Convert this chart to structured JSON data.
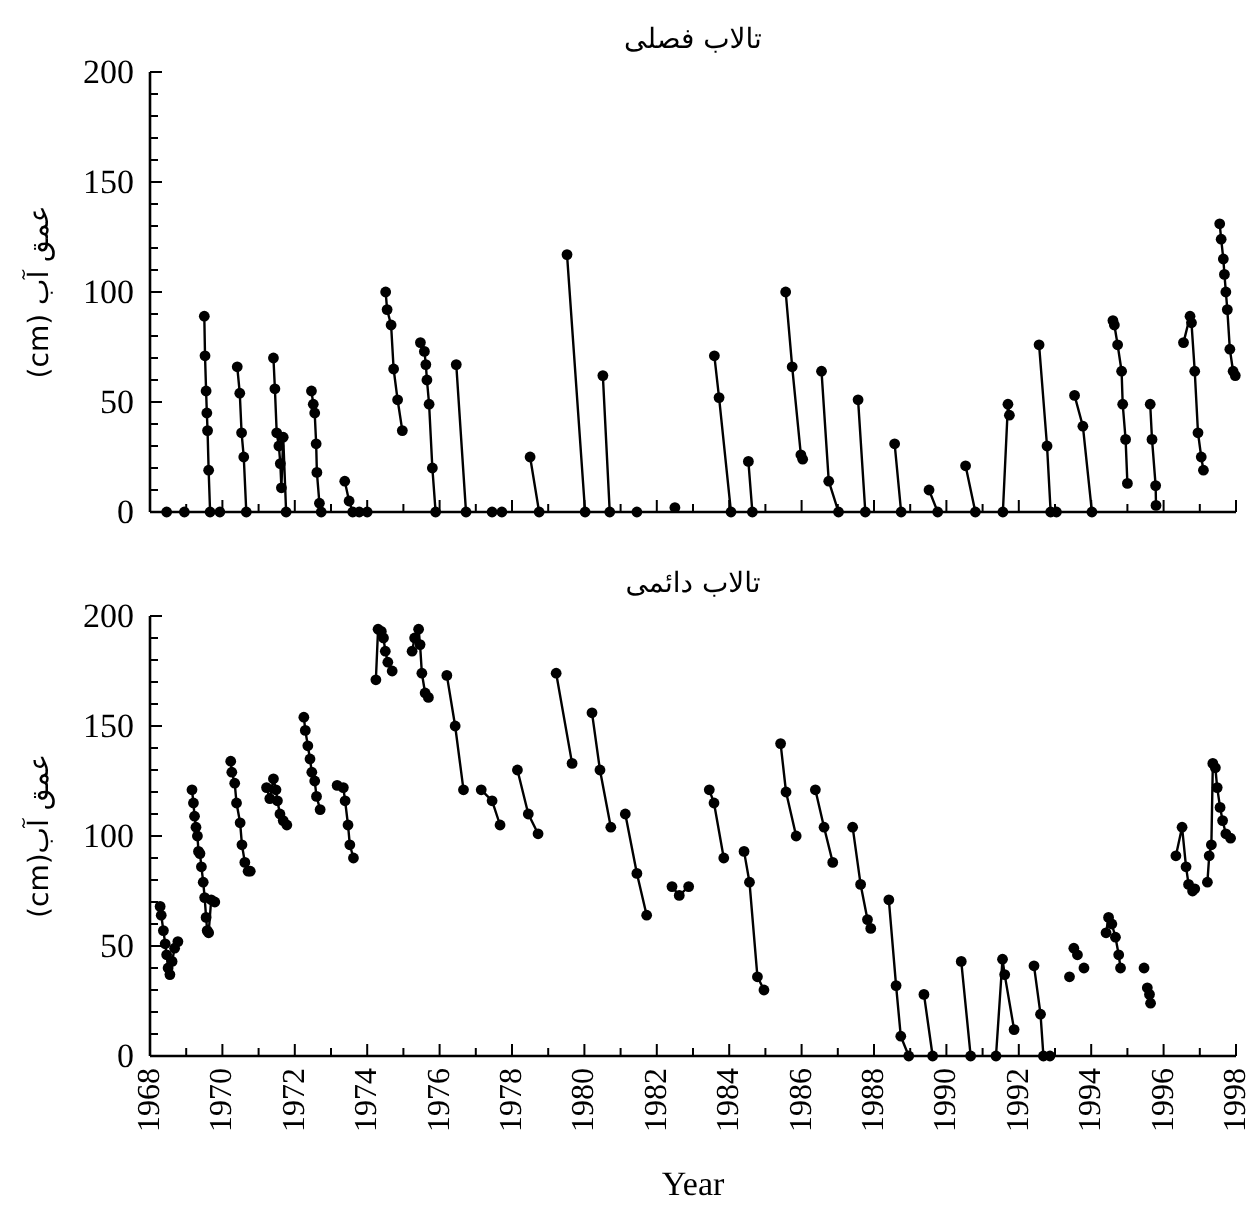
{
  "chart_data": [
    {
      "type": "line",
      "title": "تالاب فصلی",
      "ylabel": "عمق آب (cm)",
      "xlim": [
        1968,
        1998
      ],
      "ylim": [
        0,
        200
      ],
      "tick_labels": "y",
      "marker": "circle",
      "xticks": [
        1968,
        {
          "value": 1969,
          "label": null
        },
        1970,
        {
          "value": 1971,
          "label": null
        },
        1972,
        {
          "value": 1973,
          "label": null
        },
        1974,
        {
          "value": 1975,
          "label": null
        },
        1976,
        {
          "value": 1977,
          "label": null
        },
        1978,
        {
          "value": 1979,
          "label": null
        },
        1980,
        {
          "value": 1981,
          "label": null
        },
        1982,
        {
          "value": 1983,
          "label": null
        },
        1984,
        {
          "value": 1985,
          "label": null
        },
        1986,
        {
          "value": 1987,
          "label": null
        },
        1988,
        {
          "value": 1989,
          "label": null
        },
        1990,
        {
          "value": 1991,
          "label": null
        },
        1992,
        {
          "value": 1993,
          "label": null
        },
        1994,
        {
          "value": 1995,
          "label": null
        },
        1996,
        {
          "value": 1997,
          "label": null
        },
        1998
      ],
      "yticks": [
        0,
        {
          "value": 10,
          "label": null
        },
        {
          "value": 20,
          "label": null
        },
        {
          "value": 30,
          "label": null
        },
        {
          "value": 40,
          "label": null
        },
        50,
        {
          "value": 60,
          "label": null
        },
        {
          "value": 70,
          "label": null
        },
        {
          "value": 80,
          "label": null
        },
        {
          "value": 90,
          "label": null
        },
        100,
        {
          "value": 110,
          "label": null
        },
        {
          "value": 120,
          "label": null
        },
        {
          "value": 130,
          "label": null
        },
        {
          "value": 140,
          "label": null
        },
        150,
        {
          "value": 160,
          "label": null
        },
        {
          "value": 170,
          "label": null
        },
        {
          "value": 180,
          "label": null
        },
        {
          "value": 190,
          "label": null
        },
        200
      ],
      "series": [
        {
          "color": "#000000",
          "x": [
            1969.5,
            1969.52,
            1969.55,
            1969.57,
            1969.59,
            1969.62,
            1969.66,
            1969.93,
            null,
            1970.41,
            1970.48,
            1970.53,
            1970.59,
            1970.66,
            null,
            1971.41,
            1971.45,
            1971.5,
            1971.56,
            1971.6,
            1971.63,
            1971.68,
            1971.76,
            null,
            1972.46,
            1972.51,
            1972.55,
            1972.59,
            1972.61,
            1972.68,
            1972.73,
            null,
            1973.38,
            1973.5,
            1973.6,
            1973.78,
            1974.0,
            null,
            1974.51,
            1974.55,
            1974.66,
            1974.73,
            1974.84,
            1974.97,
            null,
            1975.47,
            1975.58,
            1975.62,
            1975.65,
            1975.71,
            1975.8,
            1975.89,
            null,
            1976.46,
            1976.73,
            null,
            1978.5,
            1978.75,
            null,
            1979.52,
            1980.02,
            null,
            1980.51,
            1980.7,
            null,
            1983.59,
            1983.72,
            1984.05,
            null,
            1984.53,
            1984.64,
            null,
            1985.56,
            1985.74,
            1985.98,
            1986.03,
            null,
            1986.55,
            1986.75,
            1987.02,
            null,
            1987.56,
            1987.76,
            null,
            1988.57,
            1988.75,
            null,
            1989.52,
            1989.76,
            null,
            1990.53,
            1990.8,
            null,
            1991.56,
            1991.7,
            1991.74,
            null,
            1992.56,
            1992.78,
            1992.88,
            1993.04,
            null,
            1993.54,
            1993.77,
            1994.02,
            null,
            1994.6,
            1994.64,
            1994.73,
            1994.84,
            1994.87,
            1994.95,
            1995.0,
            null,
            1995.63,
            1995.68,
            1995.78,
            1995.79,
            null,
            1996.55,
            1996.73,
            1996.77,
            1996.86,
            1996.95,
            1997.04,
            1997.1,
            null,
            1997.55,
            1997.59,
            1997.65,
            1997.68,
            1997.72,
            1997.76,
            1997.83,
            1997.92,
            1997.98
          ],
          "values": [
            89,
            71,
            55,
            45,
            37,
            19,
            0,
            0,
            null,
            66,
            54,
            36,
            25,
            0,
            null,
            70,
            56,
            36,
            30,
            22,
            11,
            34,
            0,
            null,
            55,
            49,
            45,
            31,
            18,
            4,
            0,
            null,
            14,
            5,
            0,
            0,
            0,
            null,
            100,
            92,
            85,
            65,
            51,
            37,
            null,
            77,
            73,
            67,
            60,
            49,
            20,
            0,
            null,
            67,
            0,
            null,
            25,
            0,
            null,
            117,
            0,
            null,
            62,
            0,
            null,
            71,
            52,
            0,
            null,
            23,
            0,
            null,
            100,
            66,
            26,
            24,
            null,
            64,
            14,
            0,
            null,
            51,
            0,
            null,
            31,
            0,
            null,
            10,
            0,
            null,
            21,
            0,
            null,
            0,
            49,
            44,
            null,
            76,
            30,
            0,
            0,
            null,
            53,
            39,
            0,
            null,
            87,
            85,
            76,
            64,
            49,
            33,
            13,
            null,
            49,
            33,
            12,
            3,
            null,
            77,
            89,
            86,
            64,
            36,
            25,
            19,
            null,
            131,
            124,
            115,
            108,
            100,
            92,
            74,
            64,
            62
          ]
        },
        {
          "type": "scatter",
          "color": "#000000",
          "x": [
            1968.46,
            1968.95,
            1977.45,
            1977.72,
            1981.45,
            1982.5
          ],
          "values": [
            0,
            0,
            0,
            0,
            0,
            2
          ]
        }
      ]
    },
    {
      "type": "line",
      "title": "تالاب دائمی",
      "ylabel": "عمق آب(cm)",
      "xlabel": "Year",
      "xlim": [
        1968,
        1998
      ],
      "ylim": [
        0,
        200
      ],
      "marker": "circle",
      "xticks": [
        1968,
        {
          "value": 1969,
          "label": null
        },
        1970,
        {
          "value": 1971,
          "label": null
        },
        1972,
        {
          "value": 1973,
          "label": null
        },
        1974,
        {
          "value": 1975,
          "label": null
        },
        1976,
        {
          "value": 1977,
          "label": null
        },
        1978,
        {
          "value": 1979,
          "label": null
        },
        1980,
        {
          "value": 1981,
          "label": null
        },
        1982,
        {
          "value": 1983,
          "label": null
        },
        1984,
        {
          "value": 1985,
          "label": null
        },
        1986,
        {
          "value": 1987,
          "label": null
        },
        1988,
        {
          "value": 1989,
          "label": null
        },
        1990,
        {
          "value": 1991,
          "label": null
        },
        1992,
        {
          "value": 1993,
          "label": null
        },
        1994,
        {
          "value": 1995,
          "label": null
        },
        1996,
        {
          "value": 1997,
          "label": null
        },
        1998
      ],
      "yticks": [
        0,
        {
          "value": 10,
          "label": null
        },
        {
          "value": 20,
          "label": null
        },
        {
          "value": 30,
          "label": null
        },
        {
          "value": 40,
          "label": null
        },
        50,
        {
          "value": 60,
          "label": null
        },
        {
          "value": 70,
          "label": null
        },
        {
          "value": 80,
          "label": null
        },
        {
          "value": 90,
          "label": null
        },
        100,
        {
          "value": 110,
          "label": null
        },
        {
          "value": 120,
          "label": null
        },
        {
          "value": 130,
          "label": null
        },
        {
          "value": 140,
          "label": null
        },
        150,
        {
          "value": 160,
          "label": null
        },
        {
          "value": 170,
          "label": null
        },
        {
          "value": 180,
          "label": null
        },
        {
          "value": 190,
          "label": null
        },
        200
      ],
      "series": [
        {
          "color": "#000000",
          "x": [
            1968.28,
            1968.31,
            1968.37,
            1968.42,
            1968.46,
            1968.5,
            1968.55,
            1968.61,
            1968.68,
            1968.77,
            null,
            1969.16,
            1969.2,
            1969.23,
            1969.27,
            1969.31,
            1969.34,
            1969.38,
            1969.42,
            1969.47,
            1969.51,
            1969.55,
            1969.58,
            1969.62,
            1969.69,
            1969.79,
            null,
            1970.23,
            1970.26,
            1970.34,
            1970.39,
            1970.49,
            1970.54,
            1970.62,
            1970.71,
            1970.77,
            null,
            1971.22,
            1971.31,
            1971.41,
            1971.48,
            1971.52,
            1971.59,
            1971.68,
            1971.78,
            null,
            1972.25,
            1972.29,
            1972.36,
            1972.42,
            1972.47,
            1972.55,
            1972.6,
            1972.7,
            null,
            1973.17,
            1973.34,
            1973.39,
            1973.47,
            1973.52,
            1973.62,
            null,
            1974.24,
            1974.3,
            1974.39,
            1974.45,
            1974.5,
            1974.57,
            1974.69,
            null,
            1975.24,
            1975.31,
            1975.42,
            1975.46,
            1975.51,
            1975.6,
            1975.69,
            null,
            1976.2,
            1976.43,
            1976.66,
            null,
            1977.15,
            1977.45,
            1977.67,
            null,
            1978.15,
            1978.45,
            1978.72,
            null,
            1979.22,
            1979.66,
            null,
            1980.21,
            1980.43,
            1980.73,
            null,
            1981.13,
            1981.45,
            1981.72,
            null,
            1982.42,
            1982.62,
            1982.88,
            null,
            1983.45,
            1983.58,
            1983.85,
            null,
            1984.41,
            1984.56,
            1984.78,
            1984.96,
            null,
            1985.42,
            1985.57,
            1985.85,
            null,
            1986.38,
            1986.62,
            1986.86,
            null,
            1987.41,
            1987.63,
            1987.82,
            1987.91,
            null,
            1988.41,
            1988.61,
            1988.74,
            1988.96,
            null,
            1989.38,
            1989.62,
            null,
            1990.41,
            1990.67,
            null,
            1991.37,
            1991.55,
            1991.61,
            1991.87,
            null,
            1992.42,
            1992.6,
            1992.68,
            1992.86,
            null,
            1994.41,
            1994.48,
            1994.57,
            1994.67,
            1994.76,
            1994.81,
            null,
            1996.34,
            1996.51,
            1996.62,
            1996.69,
            1996.8,
            1996.86,
            null,
            1997.21,
            1997.26,
            1997.32,
            1997.36,
            1997.43,
            1997.48,
            1997.56,
            1997.63,
            1997.72,
            1997.85
          ],
          "values": [
            68,
            64,
            57,
            51,
            46,
            40,
            37,
            43,
            49,
            52,
            null,
            121,
            115,
            109,
            104,
            100,
            93,
            92,
            86,
            79,
            72,
            63,
            57,
            56,
            71,
            70,
            null,
            134,
            129,
            124,
            115,
            106,
            96,
            88,
            84,
            84,
            null,
            122,
            117,
            126,
            121,
            116,
            110,
            107,
            105,
            null,
            154,
            148,
            141,
            135,
            129,
            125,
            118,
            112,
            null,
            123,
            122,
            116,
            105,
            96,
            90,
            null,
            171,
            194,
            193,
            190,
            184,
            179,
            175,
            null,
            184,
            190,
            194,
            187,
            174,
            165,
            163,
            null,
            173,
            150,
            121,
            null,
            121,
            116,
            105,
            null,
            130,
            110,
            101,
            null,
            174,
            133,
            null,
            156,
            130,
            104,
            null,
            110,
            83,
            64,
            null,
            77,
            73,
            77,
            null,
            121,
            115,
            90,
            null,
            93,
            79,
            36,
            30,
            null,
            142,
            120,
            100,
            null,
            121,
            104,
            88,
            null,
            104,
            78,
            62,
            58,
            null,
            71,
            32,
            9,
            0,
            null,
            28,
            0,
            null,
            43,
            0,
            null,
            0,
            44,
            37,
            12,
            null,
            41,
            19,
            0,
            0,
            null,
            56,
            63,
            60,
            54,
            46,
            40,
            null,
            91,
            104,
            86,
            78,
            75,
            76,
            null,
            79,
            91,
            96,
            133,
            131,
            122,
            113,
            107,
            101,
            99
          ]
        },
        {
          "type": "scatter",
          "color": "#000000",
          "x": [
            1993.4,
            1993.52,
            1993.62,
            1993.8,
            1995.46,
            1995.55,
            1995.61,
            1995.64
          ],
          "values": [
            36,
            49,
            46,
            40,
            40,
            31,
            28,
            24
          ]
        }
      ]
    }
  ]
}
